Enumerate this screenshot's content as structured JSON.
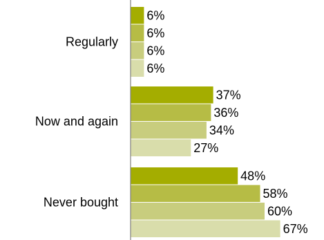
{
  "chart_data": {
    "type": "bar",
    "orientation": "horizontal",
    "categories": [
      "Regularly",
      "Now and again",
      "Never bought"
    ],
    "series": [
      {
        "values": [
          6,
          37,
          48
        ],
        "color": "#a4ad00"
      },
      {
        "values": [
          6,
          36,
          58
        ],
        "color": "#b6bc45"
      },
      {
        "values": [
          6,
          34,
          60
        ],
        "color": "#c8cd7e"
      },
      {
        "values": [
          6,
          27,
          67
        ],
        "color": "#d9ddab"
      }
    ],
    "value_labels": [
      [
        "6%",
        "6%",
        "6%",
        "6%"
      ],
      [
        "37%",
        "36%",
        "34%",
        "27%"
      ],
      [
        "48%",
        "58%",
        "60%",
        "67%"
      ]
    ],
    "xlim": [
      0,
      100
    ],
    "grid": false,
    "legend": "none",
    "title": "",
    "xlabel": "",
    "ylabel": ""
  }
}
